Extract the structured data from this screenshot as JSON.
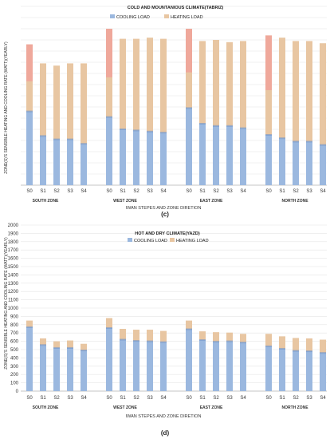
{
  "chart_data": [
    {
      "panel": "(c)",
      "type": "bar",
      "stacked": true,
      "title": "COLD AND MOUNTANIOUS CLIMATE(TABRIZ)",
      "ylabel": "ZONE(S)'S SENSIBLE HEATING AND COOLING RATE (WATT)(YEARLY)",
      "xlabel": "IWAN STEPES AND ZONE DIRETION",
      "ylim": [
        0,
        800
      ],
      "yticks": [],
      "grid": true,
      "legend": "top",
      "groups": [
        {
          "zone": "SOUTH ZONE",
          "categories": [
            "S0",
            "S1",
            "S2",
            "S3",
            "S4"
          ]
        },
        {
          "zone": "WEST ZONE",
          "categories": [
            "S0",
            "S1",
            "S2",
            "S3",
            "S4"
          ]
        },
        {
          "zone": "EAST ZONE",
          "categories": [
            "S0",
            "S1",
            "S2",
            "S3",
            "S4"
          ]
        },
        {
          "zone": "NORTH ZONE",
          "categories": [
            "S0",
            "S1",
            "S2",
            "S3",
            "S4"
          ]
        }
      ],
      "series": [
        {
          "name": "COOLING LOAD",
          "color": "#9bb8df",
          "values": [
            [
              330,
              220,
              205,
              205,
              185
            ],
            [
              305,
              250,
              245,
              240,
              235
            ],
            [
              345,
              275,
              265,
              265,
              255
            ],
            [
              225,
              210,
              195,
              195,
              180
            ]
          ]
        },
        {
          "name": "HEATING LOAD",
          "color": "#e8c6a2",
          "values": [
            [
              300,
              325,
              330,
              340,
              360
            ],
            [
              395,
              405,
              410,
              420,
              420
            ],
            [
              355,
              370,
              385,
              375,
              390
            ],
            [
              445,
              450,
              450,
              450,
              455
            ]
          ]
        }
      ],
      "overlay_color": "#f0a29a"
    },
    {
      "panel": "(d)",
      "type": "bar",
      "stacked": true,
      "title": "HOT AND DRY CLIMATE(YAZD)",
      "ylabel": "ZONE(S)'S SENSIBLE HEATING AND COOLING RATE (WATT)(YEARLY)",
      "xlabel": "IWAN STEPES AND ZONE DIRETION",
      "ylim": [
        0,
        2000
      ],
      "yticks": [
        0,
        100,
        200,
        300,
        400,
        500,
        600,
        700,
        800,
        900,
        1000,
        1100,
        1200,
        1300,
        1400,
        1500,
        1600,
        1700,
        1800,
        1900,
        2000
      ],
      "grid": true,
      "legend": "top",
      "groups": [
        {
          "zone": "SOUTH ZONE",
          "categories": [
            "S0",
            "S1",
            "S2",
            "S3",
            "S4"
          ]
        },
        {
          "zone": "WEST ZONE",
          "categories": [
            "S0",
            "S1",
            "S2",
            "S3",
            "S4"
          ]
        },
        {
          "zone": "EAST ZONE",
          "categories": [
            "S0",
            "S1",
            "S2",
            "S3",
            "S4"
          ]
        },
        {
          "zone": "NORTH ZONE",
          "categories": [
            "S0",
            "S1",
            "S2",
            "S3",
            "S4"
          ]
        }
      ],
      "series": [
        {
          "name": "COOLING LOAD",
          "color": "#9bb8df",
          "values": [
            [
              770,
              555,
              520,
              520,
              490
            ],
            [
              760,
              620,
              605,
              600,
              590
            ],
            [
              745,
              615,
              595,
              600,
              585
            ],
            [
              540,
              510,
              485,
              480,
              460
            ]
          ]
        },
        {
          "name": "HEATING LOAD",
          "color": "#e8c6a2",
          "values": [
            [
              80,
              80,
              80,
              90,
              80
            ],
            [
              120,
              130,
              135,
              140,
              135
            ],
            [
              105,
              105,
              115,
              105,
              105
            ],
            [
              150,
              150,
              155,
              155,
              160
            ]
          ]
        }
      ],
      "overlay_color": "#f0a29a"
    }
  ]
}
